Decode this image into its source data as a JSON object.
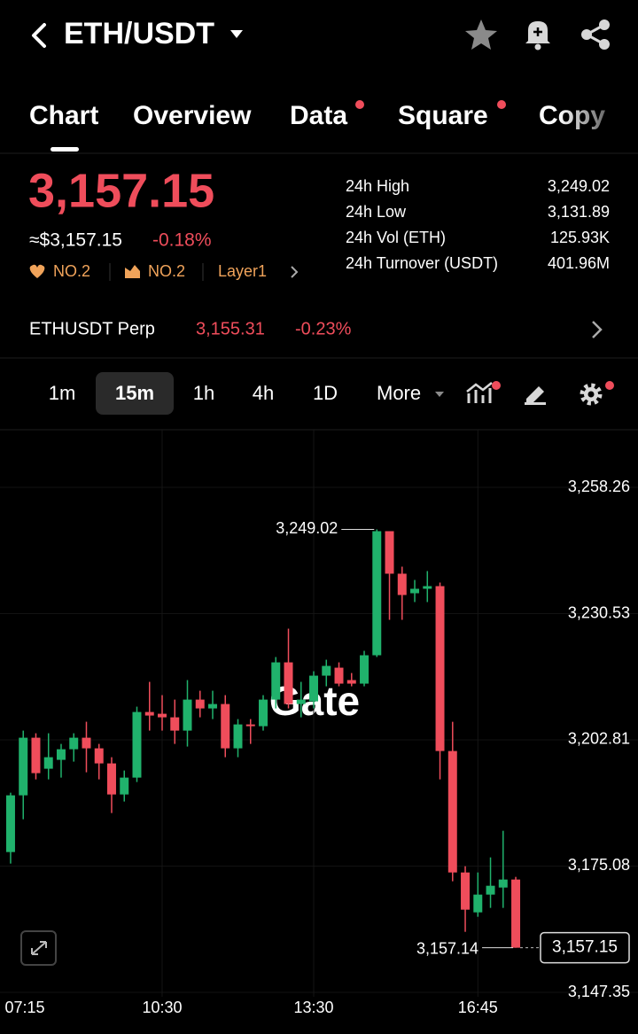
{
  "header": {
    "title": "ETH/USDT"
  },
  "tabs": [
    "Chart",
    "Overview",
    "Data",
    "Square",
    "Copy"
  ],
  "price": {
    "last": "3,157.15",
    "approx": "≈$3,157.15",
    "change": "-0.18%",
    "tags": [
      "NO.2",
      "NO.2",
      "Layer1"
    ]
  },
  "stats": [
    {
      "label": "24h High",
      "value": "3,249.02"
    },
    {
      "label": "24h Low",
      "value": "3,131.89"
    },
    {
      "label": "24h Vol (ETH)",
      "value": "125.93K"
    },
    {
      "label": "24h Turnover (USDT)",
      "value": "401.96M"
    }
  ],
  "perp": {
    "name": "ETHUSDT Perp",
    "price": "3,155.31",
    "change": "-0.23%"
  },
  "intervals": [
    "1m",
    "15m",
    "1h",
    "4h",
    "1D",
    "More"
  ],
  "chart_data": {
    "type": "candlestick",
    "up_color": "#20b26c",
    "down_color": "#ef4d5b",
    "grid": true,
    "watermark": "Gate",
    "open": [
      3178.16,
      3190.62,
      3203.27,
      3196.46,
      3198.41,
      3200.74,
      3203.27,
      3200.94,
      3197.63,
      3190.81,
      3194.51,
      3208.92,
      3208.53,
      3207.75,
      3204.83,
      3211.64,
      3209.7,
      3210.67,
      3200.94,
      3206.19,
      3205.8,
      3211.64,
      3219.82,
      3210.67,
      3211.25,
      3216.9,
      3218.65,
      3215.93,
      3215.15,
      3221.38,
      3248.63,
      3239.29,
      3235.0,
      3235.98,
      3236.56,
      3200.35,
      3173.68,
      3164.92,
      3168.82,
      3170.37,
      3172.13
    ],
    "high": [
      3191.2,
      3204.83,
      3204.25,
      3204.25,
      3201.91,
      3204.25,
      3206.78,
      3201.91,
      3198.99,
      3196.07,
      3210.09,
      3215.54,
      3212.62,
      3211.64,
      3215.93,
      3213.59,
      3213.59,
      3212.62,
      3207.36,
      3207.36,
      3212.62,
      3220.99,
      3227.22,
      3215.54,
      3217.87,
      3220.4,
      3219.82,
      3217.48,
      3222.35,
      3249.02,
      3248.63,
      3240.84,
      3237.92,
      3239.87,
      3237.34,
      3206.78,
      3175.05,
      3173.68,
      3176.99,
      3182.83,
      3172.71
    ],
    "low": [
      3175.63,
      3185.36,
      3194.12,
      3194.12,
      3194.51,
      3198.02,
      3195.68,
      3194.12,
      3186.73,
      3189.26,
      3193.54,
      3204.83,
      3204.83,
      3201.91,
      3201.33,
      3207.75,
      3207.36,
      3198.99,
      3198.99,
      3201.91,
      3204.83,
      3209.7,
      3209.7,
      3207.75,
      3209.7,
      3214.56,
      3214.56,
      3214.56,
      3214.56,
      3220.99,
      3229.16,
      3229.16,
      3233.06,
      3233.06,
      3194.12,
      3171.74,
      3160.64,
      3163.95,
      3165.9,
      3165.9,
      3157.14
    ],
    "close": [
      3190.62,
      3203.27,
      3195.49,
      3198.99,
      3200.74,
      3203.27,
      3200.94,
      3197.63,
      3190.81,
      3194.51,
      3208.92,
      3208.14,
      3207.75,
      3204.83,
      3211.64,
      3209.7,
      3210.67,
      3200.94,
      3206.19,
      3205.8,
      3211.64,
      3219.82,
      3210.67,
      3211.64,
      3216.9,
      3219.04,
      3215.15,
      3215.15,
      3221.38,
      3248.63,
      3239.29,
      3234.61,
      3235.98,
      3236.56,
      3200.35,
      3173.68,
      3165.51,
      3168.82,
      3170.76,
      3172.13,
      3157.15
    ],
    "xlim": [
      -0.84,
      49.68
    ],
    "xticks": [
      {
        "value": -1,
        "label": "07:15"
      },
      {
        "value": 12,
        "label": "10:30"
      },
      {
        "value": 24,
        "label": "13:30"
      },
      {
        "value": 37,
        "label": "16:45"
      }
    ],
    "ylim": [
      3147.35,
      3258.26
    ],
    "yticks": [
      {
        "value": 3258.26,
        "label": "3,258.26"
      },
      {
        "value": 3230.53,
        "label": "3,230.53"
      },
      {
        "value": 3202.81,
        "label": "3,202.81"
      },
      {
        "value": 3175.08,
        "label": "3,175.08"
      },
      {
        "value": 3147.35,
        "label": "3,147.35"
      }
    ],
    "max_label": "3,249.02",
    "min_label": "3,157.14",
    "last_label": "3,157.15"
  }
}
